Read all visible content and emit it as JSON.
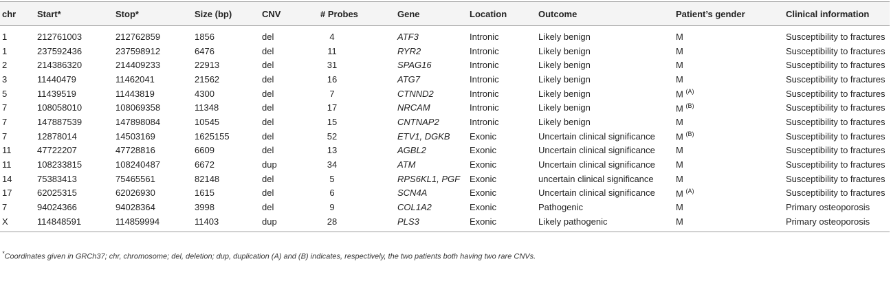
{
  "table": {
    "columns": [
      "chr",
      "Start*",
      "Stop*",
      "Size (bp)",
      "CNV",
      "# Probes",
      "Gene",
      "Location",
      "Outcome",
      "Patient’s gender",
      "Clinical information"
    ],
    "rows": [
      {
        "chr": "1",
        "start": 212761003,
        "stop": 212762859,
        "size": 1856,
        "cnv": "del",
        "probes": 4,
        "gene": "ATF3",
        "location": "Intronic",
        "outcome": "Likely benign",
        "gender": "M",
        "clinical": "Susceptibility to fractures"
      },
      {
        "chr": "1",
        "start": 237592436,
        "stop": 237598912,
        "size": 6476,
        "cnv": "del",
        "probes": 11,
        "gene": "RYR2",
        "location": "Intronic",
        "outcome": "Likely benign",
        "gender": "M",
        "clinical": "Susceptibility to fractures"
      },
      {
        "chr": "2",
        "start": 214386320,
        "stop": 214409233,
        "size": 22913,
        "cnv": "del",
        "probes": 31,
        "gene": "SPAG16",
        "location": "Intronic",
        "outcome": "Likely benign",
        "gender": "M",
        "clinical": "Susceptibility to fractures"
      },
      {
        "chr": "3",
        "start": 11440479,
        "stop": 11462041,
        "size": 21562,
        "cnv": "del",
        "probes": 16,
        "gene": "ATG7",
        "location": "Intronic",
        "outcome": "Likely benign",
        "gender": "M",
        "clinical": "Susceptibility to fractures"
      },
      {
        "chr": "5",
        "start": 11439519,
        "stop": 11443819,
        "size": 4300,
        "cnv": "del",
        "probes": 7,
        "gene": "CTNND2",
        "location": "Intronic",
        "outcome": "Likely benign",
        "gender": "M",
        "note": "(A)",
        "clinical": "Susceptibility to fractures"
      },
      {
        "chr": "7",
        "start": 108058010,
        "stop": 108069358,
        "size": 11348,
        "cnv": "del",
        "probes": 17,
        "gene": "NRCAM",
        "location": "Intronic",
        "outcome": "Likely benign",
        "gender": "M",
        "note": "(B)",
        "clinical": "Susceptibility to fractures"
      },
      {
        "chr": "7",
        "start": 147887539,
        "stop": 147898084,
        "size": 10545,
        "cnv": "del",
        "probes": 15,
        "gene": "CNTNAP2",
        "location": "Intronic",
        "outcome": "Likely benign",
        "gender": "M",
        "clinical": "Susceptibility to fractures"
      },
      {
        "chr": "7",
        "start": 12878014,
        "stop": 14503169,
        "size": 1625155,
        "cnv": "del",
        "probes": 52,
        "gene": "ETV1, DGKB",
        "location": "Exonic",
        "outcome": "Uncertain clinical significance",
        "gender": "M",
        "note": "(B)",
        "clinical": "Susceptibility to fractures"
      },
      {
        "chr": "11",
        "start": 47722207,
        "stop": 47728816,
        "size": 6609,
        "cnv": "del",
        "probes": 13,
        "gene": "AGBL2",
        "location": "Exonic",
        "outcome": "Uncertain clinical significance",
        "gender": "M",
        "clinical": "Susceptibility to fractures"
      },
      {
        "chr": "11",
        "start": 108233815,
        "stop": 108240487,
        "size": 6672,
        "cnv": "dup",
        "probes": 34,
        "gene": "ATM",
        "location": "Exonic",
        "outcome": "Uncertain clinical significance",
        "gender": "M",
        "clinical": "Susceptibility to fractures"
      },
      {
        "chr": "14",
        "start": 75383413,
        "stop": 75465561,
        "size": 82148,
        "cnv": "del",
        "probes": 5,
        "gene": "RPS6KL1, PGF",
        "location": "Exonic",
        "outcome": "uncertain clinical significance",
        "gender": "M",
        "clinical": "Susceptibility to fractures"
      },
      {
        "chr": "17",
        "start": 62025315,
        "stop": 62026930,
        "size": 1615,
        "cnv": "del",
        "probes": 6,
        "gene": "SCN4A",
        "location": "Exonic",
        "outcome": "Uncertain clinical significance",
        "gender": "M",
        "note": "(A)",
        "clinical": "Susceptibility to fractures"
      },
      {
        "chr": "7",
        "start": 94024366,
        "stop": 94028364,
        "size": 3998,
        "cnv": "del",
        "probes": 9,
        "gene": "COL1A2",
        "location": "Exonic",
        "outcome": "Pathogenic",
        "gender": "M",
        "clinical": "Primary osteoporosis"
      },
      {
        "chr": "X",
        "start": 114848591,
        "stop": 114859994,
        "size": 11403,
        "cnv": "dup",
        "probes": 28,
        "gene": "PLS3",
        "location": "Exonic",
        "outcome": "Likely pathogenic",
        "gender": "M",
        "clinical": "Primary osteoporosis"
      }
    ],
    "footnote": {
      "marker": "*",
      "text": "Coordinates given in GRCh37; chr, chromosome; del, deletion; dup, duplication (A) and (B) indicates, respectively, the two patients both having two rare CNVs."
    }
  }
}
